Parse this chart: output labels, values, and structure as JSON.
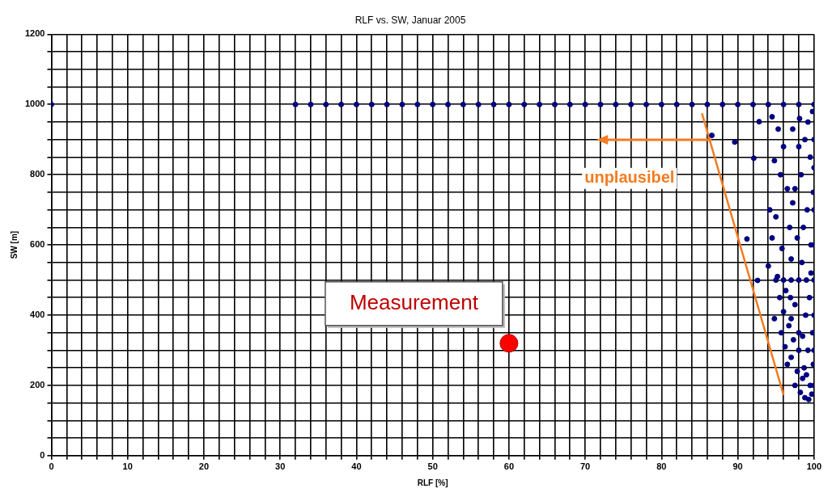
{
  "chart_data": {
    "type": "scatter",
    "title": "RLF vs. SW, Januar 2005",
    "xlabel": "RLF [%]",
    "ylabel": "SW [m]",
    "xlim": [
      0,
      100
    ],
    "ylim": [
      0,
      1200
    ],
    "xticks": [
      0,
      {
        "value": 2,
        "label": null
      },
      {
        "value": 4,
        "label": null
      },
      {
        "value": 6,
        "label": null
      },
      {
        "value": 8,
        "label": null
      },
      10,
      {
        "value": 12,
        "label": null
      },
      {
        "value": 14,
        "label": null
      },
      {
        "value": 16,
        "label": null
      },
      {
        "value": 18,
        "label": null
      },
      20,
      {
        "value": 22,
        "label": null
      },
      {
        "value": 24,
        "label": null
      },
      {
        "value": 26,
        "label": null
      },
      {
        "value": 28,
        "label": null
      },
      30,
      {
        "value": 32,
        "label": null
      },
      {
        "value": 34,
        "label": null
      },
      {
        "value": 36,
        "label": null
      },
      {
        "value": 38,
        "label": null
      },
      40,
      {
        "value": 42,
        "label": null
      },
      {
        "value": 44,
        "label": null
      },
      {
        "value": 46,
        "label": null
      },
      {
        "value": 48,
        "label": null
      },
      50,
      {
        "value": 52,
        "label": null
      },
      {
        "value": 54,
        "label": null
      },
      {
        "value": 56,
        "label": null
      },
      {
        "value": 58,
        "label": null
      },
      60,
      {
        "value": 62,
        "label": null
      },
      {
        "value": 64,
        "label": null
      },
      {
        "value": 66,
        "label": null
      },
      {
        "value": 68,
        "label": null
      },
      70,
      {
        "value": 72,
        "label": null
      },
      {
        "value": 74,
        "label": null
      },
      {
        "value": 76,
        "label": null
      },
      {
        "value": 78,
        "label": null
      },
      80,
      {
        "value": 82,
        "label": null
      },
      {
        "value": 84,
        "label": null
      },
      {
        "value": 86,
        "label": null
      },
      {
        "value": 88,
        "label": null
      },
      90,
      {
        "value": 92,
        "label": null
      },
      {
        "value": 94,
        "label": null
      },
      {
        "value": 96,
        "label": null
      },
      {
        "value": 98,
        "label": null
      },
      100
    ],
    "yticks": [
      0,
      {
        "value": 50,
        "label": null
      },
      {
        "value": 100,
        "label": null
      },
      {
        "value": 150,
        "label": null
      },
      200,
      {
        "value": 250,
        "label": null
      },
      {
        "value": 300,
        "label": null
      },
      {
        "value": 350,
        "label": null
      },
      400,
      {
        "value": 450,
        "label": null
      },
      {
        "value": 500,
        "label": null
      },
      {
        "value": 550,
        "label": null
      },
      600,
      {
        "value": 650,
        "label": null
      },
      {
        "value": 700,
        "label": null
      },
      {
        "value": 750,
        "label": null
      },
      800,
      {
        "value": 850,
        "label": null
      },
      {
        "value": 900,
        "label": null
      },
      {
        "value": 950,
        "label": null
      },
      1000,
      {
        "value": 1050,
        "label": null
      },
      {
        "value": 1100,
        "label": null
      },
      {
        "value": 1150,
        "label": null
      },
      1200
    ],
    "grid": true,
    "marker": "circle",
    "series": [
      {
        "color": "#000080",
        "x": [
          0,
          32,
          34,
          36,
          38,
          40,
          42,
          44,
          46,
          48,
          50,
          52,
          54,
          56,
          58,
          60,
          62,
          64,
          66,
          68,
          70,
          72,
          74,
          76,
          78,
          80,
          82,
          84,
          86,
          88,
          90,
          92,
          94,
          96,
          98,
          100,
          86.6,
          89.6,
          92.1,
          91.2,
          92.6,
          92.8,
          94.5,
          95.3,
          96,
          94.8,
          95.6,
          96.5,
          97.2,
          94.2,
          95,
          96.8,
          94.5,
          95.8,
          97,
          94,
          95.2,
          95,
          96,
          97,
          98,
          99,
          100,
          96.3,
          95.5,
          97.5,
          96,
          94.8,
          96.7,
          95.7,
          97.3,
          96.2,
          98,
          97,
          96.5,
          97.8,
          98.5,
          97.5,
          98.2,
          98.8,
          99.3,
          99.7,
          99.5,
          98.7,
          99.2,
          99.8,
          98.9,
          99.4,
          98.4,
          99.6,
          98.6,
          99.1,
          99.9,
          98.3,
          99.5,
          98.8,
          99.2,
          99.8,
          98.1,
          100,
          100,
          100,
          100,
          100,
          100,
          100,
          99,
          98,
          97.8,
          97.5,
          98,
          97.2,
          96.9,
          99.6,
          98.5,
          97,
          99.9
        ],
        "values": [
          1000,
          1000,
          1000,
          1000,
          1000,
          1000,
          1000,
          1000,
          1000,
          1000,
          1000,
          1000,
          1000,
          1000,
          1000,
          1000,
          1000,
          1000,
          1000,
          1000,
          1000,
          1000,
          1000,
          1000,
          1000,
          1000,
          1000,
          1000,
          1000,
          1000,
          1000,
          1000,
          1000,
          1000,
          1000,
          1000,
          912,
          893,
          847,
          617,
          499,
          951,
          965,
          930,
          880,
          840,
          800,
          760,
          720,
          700,
          680,
          650,
          620,
          590,
          560,
          540,
          510,
          500,
          500,
          500,
          500,
          500,
          500,
          470,
          450,
          430,
          410,
          390,
          370,
          350,
          330,
          310,
          300,
          280,
          260,
          240,
          220,
          200,
          180,
          165,
          160,
          175,
          200,
          250,
          300,
          350,
          400,
          450,
          550,
          600,
          650,
          700,
          750,
          800,
          850,
          900,
          950,
          980,
          960,
          900,
          820,
          700,
          600,
          400,
          300,
          200,
          230,
          350,
          620,
          760,
          880,
          930,
          450,
          520,
          340,
          390,
          260
        ]
      },
      {
        "type": "line",
        "color": "#f47b20",
        "x": [
          85.3,
          96
        ],
        "values": [
          975,
          173
        ],
        "marker": "none"
      },
      {
        "type": "scatter",
        "name": "Measurement",
        "color": "#ff0000",
        "x": [
          60
        ],
        "values": [
          320
        ]
      }
    ],
    "annotations": [
      "unplausibel"
    ]
  }
}
